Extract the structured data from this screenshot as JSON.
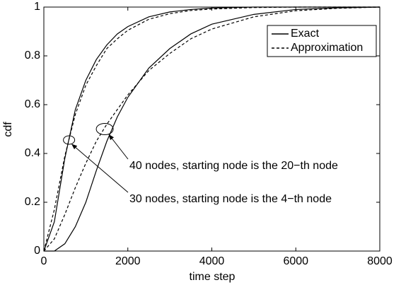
{
  "chart_data": {
    "type": "line",
    "x_label": "time step",
    "y_label": "cdf",
    "x": [
      0,
      250,
      500,
      750,
      1000,
      1250,
      1500,
      1750,
      2000,
      2500,
      3000,
      3500,
      4000,
      5000,
      6000,
      7000,
      8000
    ],
    "series": [
      {
        "color": "#000000",
        "dash": "solid",
        "values": [
          0,
          0.12,
          0.38,
          0.58,
          0.7,
          0.785,
          0.845,
          0.89,
          0.92,
          0.96,
          0.98,
          0.99,
          0.996,
          1,
          1,
          1,
          1
        ]
      },
      {
        "color": "#000000",
        "dash": "dashed",
        "values": [
          0,
          0.17,
          0.39,
          0.56,
          0.68,
          0.76,
          0.83,
          0.87,
          0.905,
          0.95,
          0.973,
          0.986,
          0.992,
          0.998,
          1,
          1,
          1
        ]
      },
      {
        "color": "#000000",
        "dash": "solid",
        "values": [
          0,
          0,
          0.03,
          0.1,
          0.2,
          0.33,
          0.45,
          0.55,
          0.63,
          0.75,
          0.83,
          0.89,
          0.93,
          0.97,
          0.99,
          0.997,
          1
        ]
      },
      {
        "color": "#000000",
        "dash": "dashed",
        "values": [
          0,
          0.05,
          0.15,
          0.26,
          0.36,
          0.45,
          0.52,
          0.58,
          0.64,
          0.74,
          0.81,
          0.87,
          0.91,
          0.96,
          0.985,
          0.995,
          1
        ]
      }
    ],
    "legend": {
      "position": "upper right",
      "entries": [
        {
          "label": "Exact",
          "dash": "solid"
        },
        {
          "label": "Approximation",
          "dash": "dashed"
        }
      ]
    },
    "annotations": [
      {
        "text": "40 nodes, starting node is the 20−th node",
        "x": 1450,
        "y": 0.5
      },
      {
        "text": "30 nodes, starting node is the 4−th node",
        "x": 600,
        "y": 0.455
      }
    ],
    "xlim": [
      0,
      8000
    ],
    "ylim": [
      0,
      1
    ],
    "xticks": [
      0,
      2000,
      4000,
      6000,
      8000
    ],
    "yticks": [
      0,
      0.2,
      0.4,
      0.6,
      0.8,
      1
    ],
    "grid": false
  }
}
